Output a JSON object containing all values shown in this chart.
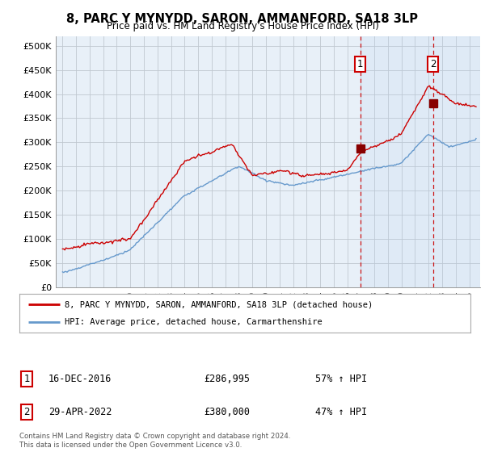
{
  "title": "8, PARC Y MYNYDD, SARON, AMMANFORD, SA18 3LP",
  "subtitle": "Price paid vs. HM Land Registry's House Price Index (HPI)",
  "ylabel_ticks": [
    "£0",
    "£50K",
    "£100K",
    "£150K",
    "£200K",
    "£250K",
    "£300K",
    "£350K",
    "£400K",
    "£450K",
    "£500K"
  ],
  "ytick_values": [
    0,
    50000,
    100000,
    150000,
    200000,
    250000,
    300000,
    350000,
    400000,
    450000,
    500000
  ],
  "ylim": [
    0,
    520000
  ],
  "xlim_start": 1994.5,
  "xlim_end": 2025.8,
  "hpi_color": "#6699cc",
  "sale_color": "#cc0000",
  "background_plot": "#e8f0f8",
  "background_fig": "#ffffff",
  "grid_color": "#c0c8d0",
  "marker1_date": 2016.96,
  "marker1_price": 286995,
  "marker2_date": 2022.33,
  "marker2_price": 380000,
  "shade_start": 2016.96,
  "shade_end": 2025.8,
  "legend_house": "8, PARC Y MYNYDD, SARON, AMMANFORD, SA18 3LP (detached house)",
  "legend_hpi": "HPI: Average price, detached house, Carmarthenshire",
  "footnote": "Contains HM Land Registry data © Crown copyright and database right 2024.\nThis data is licensed under the Open Government Licence v3.0."
}
